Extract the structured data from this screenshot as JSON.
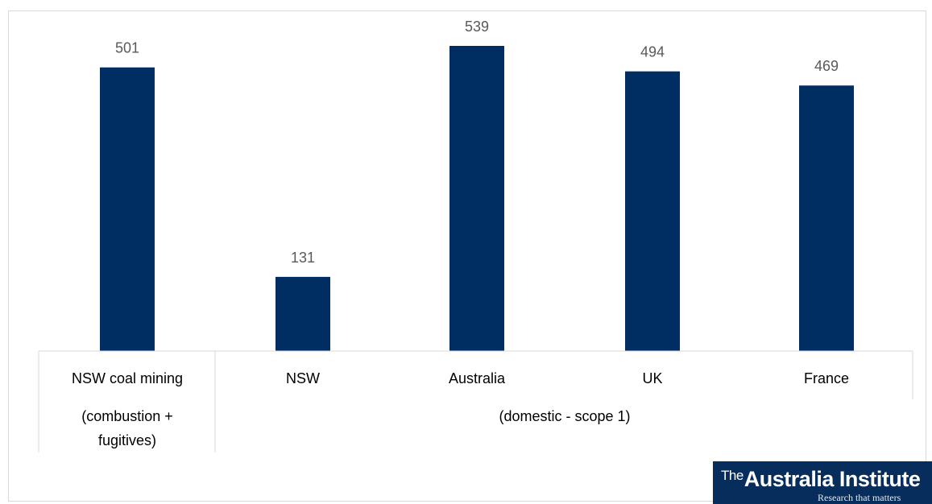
{
  "chart_data": {
    "type": "bar",
    "categories": [
      "NSW coal mining",
      "NSW",
      "Australia",
      "UK",
      "France"
    ],
    "values": [
      501,
      131,
      539,
      494,
      469
    ],
    "value_labels": [
      "501",
      "131",
      "539",
      "494",
      "469"
    ],
    "group_labels": {
      "coal": [
        "(combustion +",
        "fugitives)"
      ],
      "domestic": "(domestic - scope 1)"
    },
    "ylim": [
      0,
      550
    ],
    "bar_color": "#002d62",
    "grid": false,
    "legend": "none"
  },
  "logo": {
    "the": "The",
    "name": "Australia Institute",
    "tagline": "Research that matters"
  }
}
